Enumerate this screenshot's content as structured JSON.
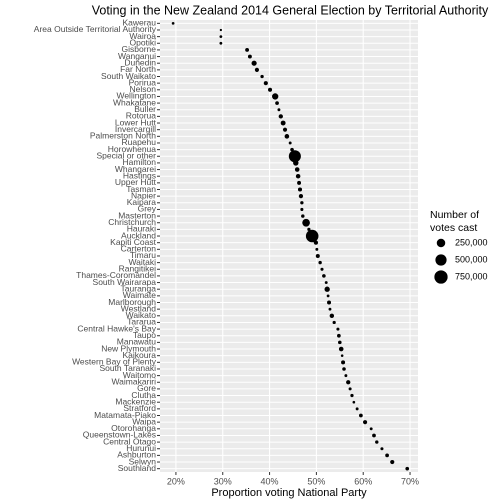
{
  "chart_data": {
    "type": "dot",
    "title": "Voting in the New Zealand 2014 General Election by Territorial Authority",
    "x_label": "Proportion voting National Party",
    "categories": [
      "Kawerau",
      "Area Outside Territorial Authority",
      "Wairoa",
      "Opotiki",
      "Gisborne",
      "Wanganui",
      "Dunedin",
      "Far North",
      "South Waikato",
      "Porirua",
      "Nelson",
      "Wellington",
      "Whakatane",
      "Buller",
      "Rotorua",
      "Lower Hutt",
      "Invercargill",
      "Palmerston North",
      "Ruapehu",
      "Horowhenua",
      "Special or other",
      "Hamilton",
      "Whangarei",
      "Hastings",
      "Upper Hutt",
      "Tasman",
      "Napier",
      "Kaipara",
      "Grey",
      "Masterton",
      "Christchurch",
      "Hauraki",
      "Auckland",
      "Kapiti Coast",
      "Carterton",
      "Timaru",
      "Waitaki",
      "Rangitikei",
      "Thames-Coromandel",
      "South Wairarapa",
      "Tauranga",
      "Waimate",
      "Marlborough",
      "Westland",
      "Waikato",
      "Tararua",
      "Central Hawke's Bay",
      "Taupo",
      "Manawatu",
      "New Plymouth",
      "Kaikoura",
      "Western Bay of Plenty",
      "South Taranaki",
      "Waitomo",
      "Waimakariri",
      "Gore",
      "Clutha",
      "Mackenzie",
      "Stratford",
      "Matamata-Piako",
      "Waipa",
      "Otorohanga",
      "Queenstown-Lakes",
      "Central Otago",
      "Hurunui",
      "Ashburton",
      "Selwyn",
      "Southland"
    ],
    "values": [
      19.4,
      29.6,
      29.6,
      29.6,
      35.2,
      35.8,
      36.7,
      37.3,
      38.4,
      39.2,
      40.1,
      41.2,
      41.6,
      42.0,
      42.4,
      42.9,
      43.3,
      43.7,
      44.4,
      44.8,
      45.4,
      45.6,
      45.9,
      46.1,
      46.3,
      46.5,
      46.7,
      46.9,
      46.9,
      47.1,
      47.8,
      48.4,
      49.1,
      49.9,
      50.1,
      50.3,
      50.8,
      51.2,
      51.6,
      52.1,
      52.3,
      52.5,
      52.7,
      52.9,
      53.3,
      53.8,
      54.6,
      54.8,
      55.0,
      55.3,
      55.5,
      55.7,
      55.9,
      56.3,
      56.8,
      57.2,
      57.6,
      58.0,
      58.7,
      59.5,
      60.4,
      61.7,
      62.3,
      62.9,
      64.0,
      65.1,
      66.2,
      69.4
    ],
    "sizes": [
      3000,
      500,
      3500,
      4000,
      20000,
      22000,
      60000,
      28000,
      11000,
      26000,
      25000,
      110000,
      17000,
      5000,
      32000,
      50000,
      27000,
      40000,
      5000,
      15000,
      600000,
      70000,
      40000,
      38000,
      22000,
      26000,
      29000,
      10000,
      7000,
      12000,
      190000,
      9000,
      660000,
      30000,
      4500,
      24000,
      11000,
      7000,
      15000,
      5000,
      65000,
      4000,
      24000,
      4500,
      35000,
      9000,
      6500,
      17000,
      15000,
      40000,
      2000,
      24000,
      14000,
      4700,
      31000,
      6500,
      9500,
      2300,
      5000,
      18000,
      27000,
      5000,
      18000,
      10500,
      6500,
      18000,
      28000,
      16000
    ],
    "color": "#000000",
    "xlim": [
      16.6,
      71.7
    ],
    "xticks": [
      {
        "value": 20,
        "label": "20%"
      },
      {
        "value": 30,
        "label": "30%"
      },
      {
        "value": 40,
        "label": "40%"
      },
      {
        "value": 50,
        "label": "50%"
      },
      {
        "value": 60,
        "label": "60%"
      },
      {
        "value": 70,
        "label": "70%"
      }
    ],
    "grid": true,
    "size_legend_title": [
      "Number of",
      "votes cast"
    ],
    "size_legend": [
      {
        "value": 250000,
        "label": "250,000"
      },
      {
        "value": 500000,
        "label": "500,000"
      },
      {
        "value": 750000,
        "label": "750,000"
      }
    ]
  }
}
